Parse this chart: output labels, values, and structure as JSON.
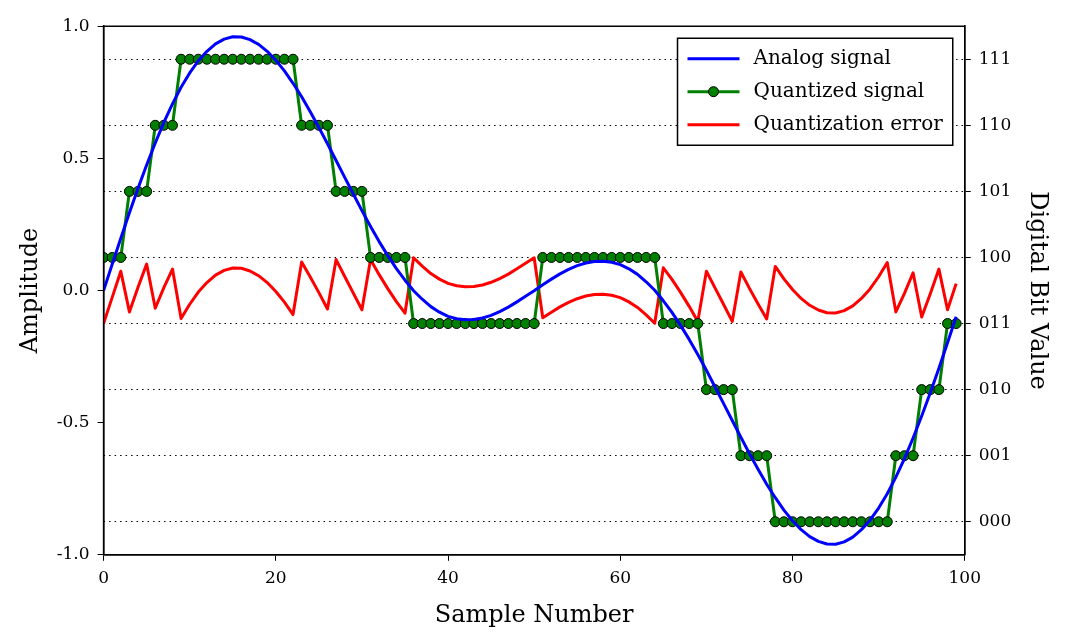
{
  "chart_data": {
    "type": "line",
    "xlabel": "Sample Number",
    "ylabel": "Amplitude",
    "y2label": "Digital Bit Value",
    "x": [
      0,
      1,
      2,
      3,
      4,
      5,
      6,
      7,
      8,
      9,
      10,
      11,
      12,
      13,
      14,
      15,
      16,
      17,
      18,
      19,
      20,
      21,
      22,
      23,
      24,
      25,
      26,
      27,
      28,
      29,
      30,
      31,
      32,
      33,
      34,
      35,
      36,
      37,
      38,
      39,
      40,
      41,
      42,
      43,
      44,
      45,
      46,
      47,
      48,
      49,
      50,
      51,
      52,
      53,
      54,
      55,
      56,
      57,
      58,
      59,
      60,
      61,
      62,
      63,
      64,
      65,
      66,
      67,
      68,
      69,
      70,
      71,
      72,
      73,
      74,
      75,
      76,
      77,
      78,
      79,
      80,
      81,
      82,
      83,
      84,
      85,
      86,
      87,
      88,
      89,
      90,
      91,
      92,
      93,
      94,
      95,
      96,
      97,
      98,
      99
    ],
    "series": [
      {
        "name": "Analog signal",
        "color": "#0000ff",
        "marker": "none",
        "values": [
          0,
          0.099,
          0.198,
          0.294,
          0.387,
          0.475,
          0.558,
          0.636,
          0.706,
          0.769,
          0.823,
          0.869,
          0.905,
          0.933,
          0.951,
          0.96,
          0.959,
          0.949,
          0.931,
          0.905,
          0.871,
          0.831,
          0.784,
          0.733,
          0.676,
          0.617,
          0.555,
          0.492,
          0.428,
          0.365,
          0.302,
          0.242,
          0.185,
          0.132,
          0.083,
          0.039,
          -0.001,
          -0.033,
          -0.061,
          -0.082,
          -0.098,
          -0.107,
          -0.111,
          -0.11,
          -0.104,
          -0.094,
          -0.08,
          -0.063,
          -0.043,
          -0.022,
          -0.001,
          0.022,
          0.043,
          0.063,
          0.08,
          0.094,
          0.104,
          0.11,
          0.111,
          0.107,
          0.098,
          0.082,
          0.061,
          0.033,
          0.001,
          -0.039,
          -0.083,
          -0.132,
          -0.185,
          -0.242,
          -0.302,
          -0.365,
          -0.428,
          -0.492,
          -0.555,
          -0.617,
          -0.676,
          -0.733,
          -0.784,
          -0.831,
          -0.871,
          -0.905,
          -0.931,
          -0.949,
          -0.959,
          -0.96,
          -0.951,
          -0.933,
          -0.905,
          -0.869,
          -0.823,
          -0.769,
          -0.706,
          -0.636,
          -0.558,
          -0.475,
          -0.387,
          -0.294,
          -0.198,
          -0.099
        ]
      },
      {
        "name": "Quantized signal",
        "color": "#007f00",
        "marker": "circle",
        "values": [
          0.125,
          0.125,
          0.125,
          0.375,
          0.375,
          0.375,
          0.625,
          0.625,
          0.625,
          0.875,
          0.875,
          0.875,
          0.875,
          0.875,
          0.875,
          0.875,
          0.875,
          0.875,
          0.875,
          0.875,
          0.875,
          0.875,
          0.875,
          0.625,
          0.625,
          0.625,
          0.625,
          0.375,
          0.375,
          0.375,
          0.375,
          0.125,
          0.125,
          0.125,
          0.125,
          0.125,
          -0.125,
          -0.125,
          -0.125,
          -0.125,
          -0.125,
          -0.125,
          -0.125,
          -0.125,
          -0.125,
          -0.125,
          -0.125,
          -0.125,
          -0.125,
          -0.125,
          -0.125,
          0.125,
          0.125,
          0.125,
          0.125,
          0.125,
          0.125,
          0.125,
          0.125,
          0.125,
          0.125,
          0.125,
          0.125,
          0.125,
          0.125,
          -0.125,
          -0.125,
          -0.125,
          -0.125,
          -0.125,
          -0.375,
          -0.375,
          -0.375,
          -0.375,
          -0.625,
          -0.625,
          -0.625,
          -0.625,
          -0.875,
          -0.875,
          -0.875,
          -0.875,
          -0.875,
          -0.875,
          -0.875,
          -0.875,
          -0.875,
          -0.875,
          -0.875,
          -0.875,
          -0.875,
          -0.875,
          -0.625,
          -0.625,
          -0.625,
          -0.375,
          -0.375,
          -0.375,
          -0.125,
          -0.125
        ]
      },
      {
        "name": "Quantization error",
        "color": "#ff0000",
        "marker": "none",
        "values": [
          -0.125,
          -0.026,
          0.073,
          -0.081,
          0.012,
          0.1,
          -0.067,
          0.011,
          0.081,
          -0.106,
          -0.052,
          -0.006,
          0.03,
          0.058,
          0.076,
          0.085,
          0.084,
          0.074,
          0.056,
          0.03,
          -0.004,
          -0.044,
          -0.091,
          0.108,
          0.051,
          -0.008,
          -0.07,
          0.117,
          0.053,
          -0.01,
          -0.073,
          0.117,
          0.06,
          0.007,
          -0.042,
          -0.086,
          0.124,
          0.092,
          0.064,
          0.043,
          0.027,
          0.018,
          0.014,
          0.015,
          0.021,
          0.031,
          0.045,
          0.062,
          0.082,
          0.103,
          0.124,
          -0.103,
          -0.082,
          -0.062,
          -0.045,
          -0.031,
          -0.021,
          -0.015,
          -0.014,
          -0.018,
          -0.027,
          -0.043,
          -0.064,
          -0.092,
          -0.124,
          0.086,
          0.042,
          -0.007,
          -0.06,
          -0.117,
          0.073,
          0.01,
          -0.053,
          -0.117,
          0.07,
          0.008,
          -0.051,
          -0.108,
          0.091,
          0.044,
          0.004,
          -0.03,
          -0.056,
          -0.074,
          -0.084,
          -0.085,
          -0.076,
          -0.058,
          -0.03,
          0.006,
          0.052,
          0.106,
          -0.081,
          -0.011,
          0.067,
          -0.1,
          -0.012,
          0.081,
          -0.073,
          0.026
        ]
      }
    ],
    "xlim": [
      0,
      100
    ],
    "xticks": [
      0,
      20,
      40,
      60,
      80,
      100
    ],
    "ylim": [
      -1,
      1
    ],
    "yticks": [
      {
        "value": -1,
        "label": "-1.0"
      },
      {
        "value": -0.5,
        "label": "-0.5"
      },
      {
        "value": 0,
        "label": "0.0"
      },
      {
        "value": 0.5,
        "label": "0.5"
      },
      {
        "value": 1,
        "label": "1.0"
      }
    ],
    "y2_categories": [
      "111",
      "110",
      "101",
      "100",
      "011",
      "010",
      "001",
      "000"
    ],
    "grid": "y2",
    "legend": "top right",
    "line_style": "solid"
  }
}
